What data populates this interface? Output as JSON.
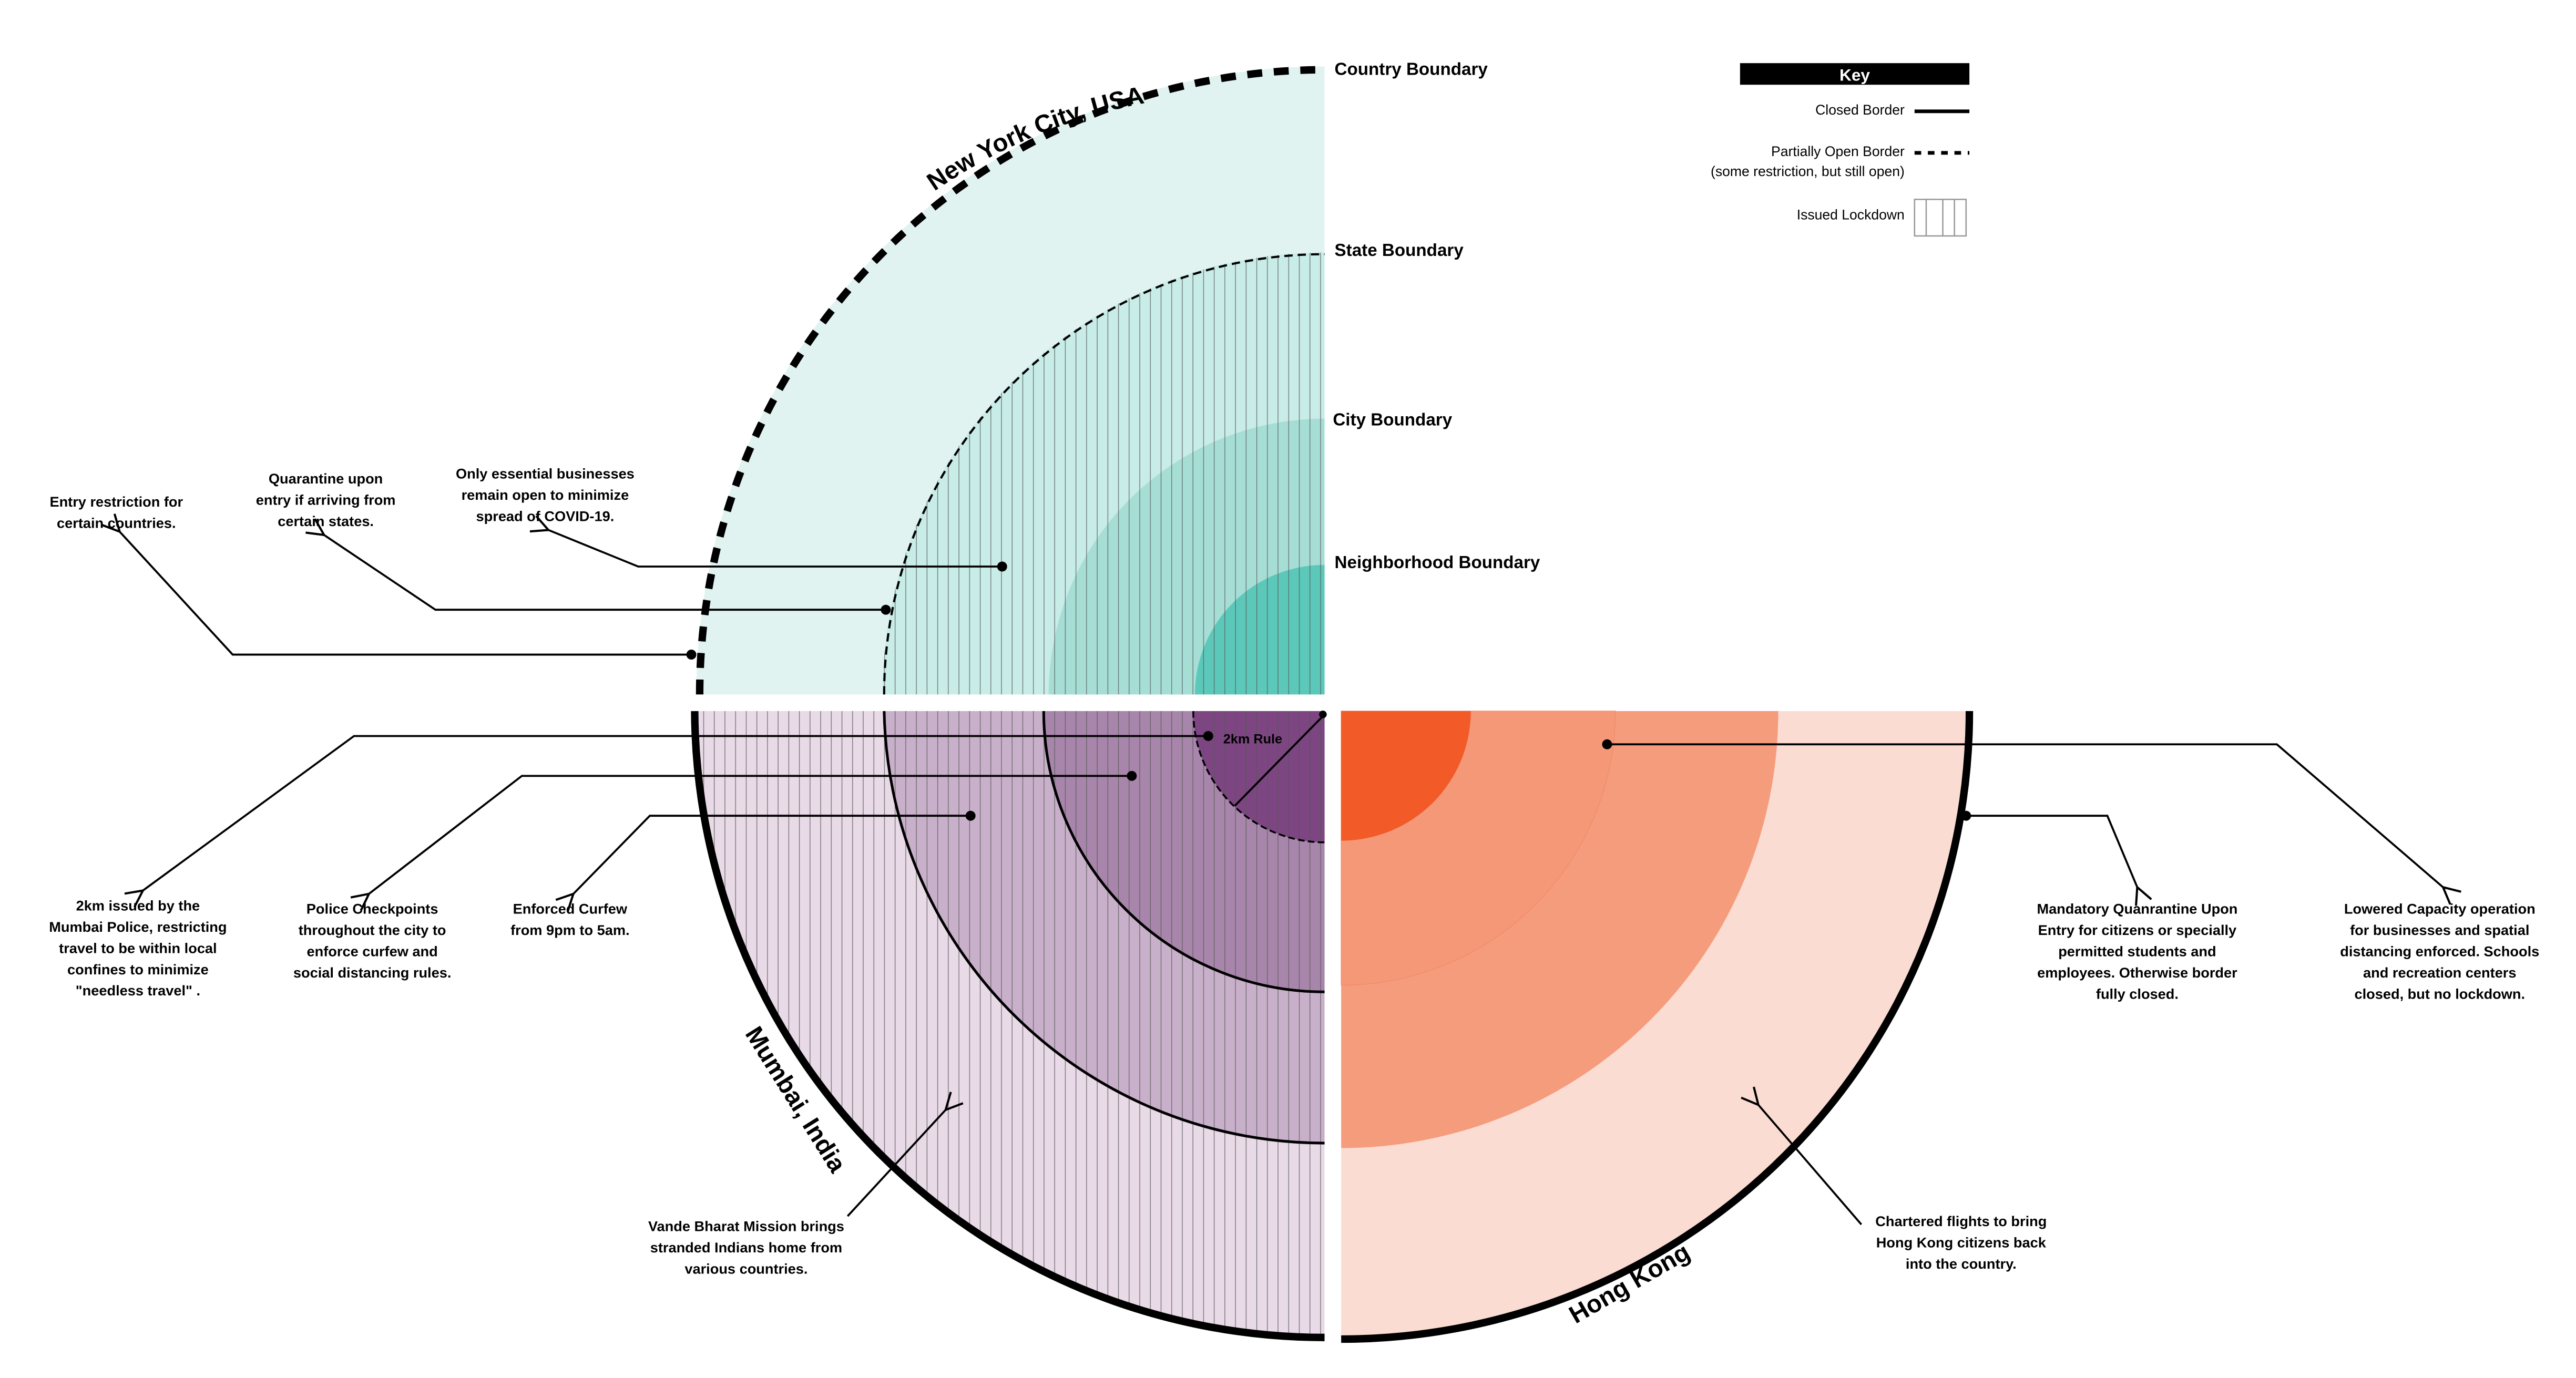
{
  "boundary_labels": {
    "country": "Country Boundary",
    "state": "State Boundary",
    "city": "City Boundary",
    "neighborhood": "Neighborhood Boundary"
  },
  "key": {
    "title": "Key",
    "closed": "Closed Border",
    "partial": "Partially Open Border",
    "partial_note": "(some restriction, but still open)",
    "lockdown": "Issued Lockdown"
  },
  "regions": {
    "nyc": {
      "name": "New York City, USA",
      "colors": [
        "#e0f3f1",
        "#c8ece7",
        "#a6ded6",
        "#5cc8ba"
      ]
    },
    "mumbai": {
      "name": "Mumbai, India",
      "rule_label": "2km Rule",
      "colors": [
        "#e8dae6",
        "#c9b0ca",
        "#a886ab",
        "#7d4683"
      ]
    },
    "hongkong": {
      "name": "Hong Kong",
      "colors": [
        "#fbdcd2",
        "#f59c7d",
        "#f59878",
        "#f25a28"
      ]
    }
  },
  "notes": {
    "entry": [
      "Entry restriction for",
      "certain countries."
    ],
    "quarantine": [
      "Quarantine upon",
      "entry if arriving from",
      "certain states."
    ],
    "essential": [
      "Only essential businesses",
      "remain open to minimize",
      "spread of COVID-19."
    ],
    "twokm": [
      "2km issued by the",
      "Mumbai Police, restricting",
      "travel to be within local",
      "confines to minimize",
      "\"needless travel\" ."
    ],
    "police": [
      "Police Checkpoints",
      "throughout the city to",
      "enforce curfew and",
      "social distancing rules."
    ],
    "curfew": [
      "Enforced Curfew",
      "from 9pm to 5am."
    ],
    "vande": [
      "Vande Bharat Mission brings",
      "stranded Indians home from",
      "various countries."
    ],
    "hk_quarantine": [
      "Mandatory Quanrantine Upon",
      "Entry for citizens or specially",
      "permitted students and",
      "employees. Otherwise border",
      "fully closed."
    ],
    "hk_capacity": [
      "Lowered Capacity operation",
      "for businesses and spatial",
      "distancing enforced. Schools",
      "and recreation centers",
      "closed, but no lockdown."
    ],
    "hk_flights": [
      "Chartered flights to bring",
      "Hong Kong citizens back",
      "into the country."
    ]
  }
}
